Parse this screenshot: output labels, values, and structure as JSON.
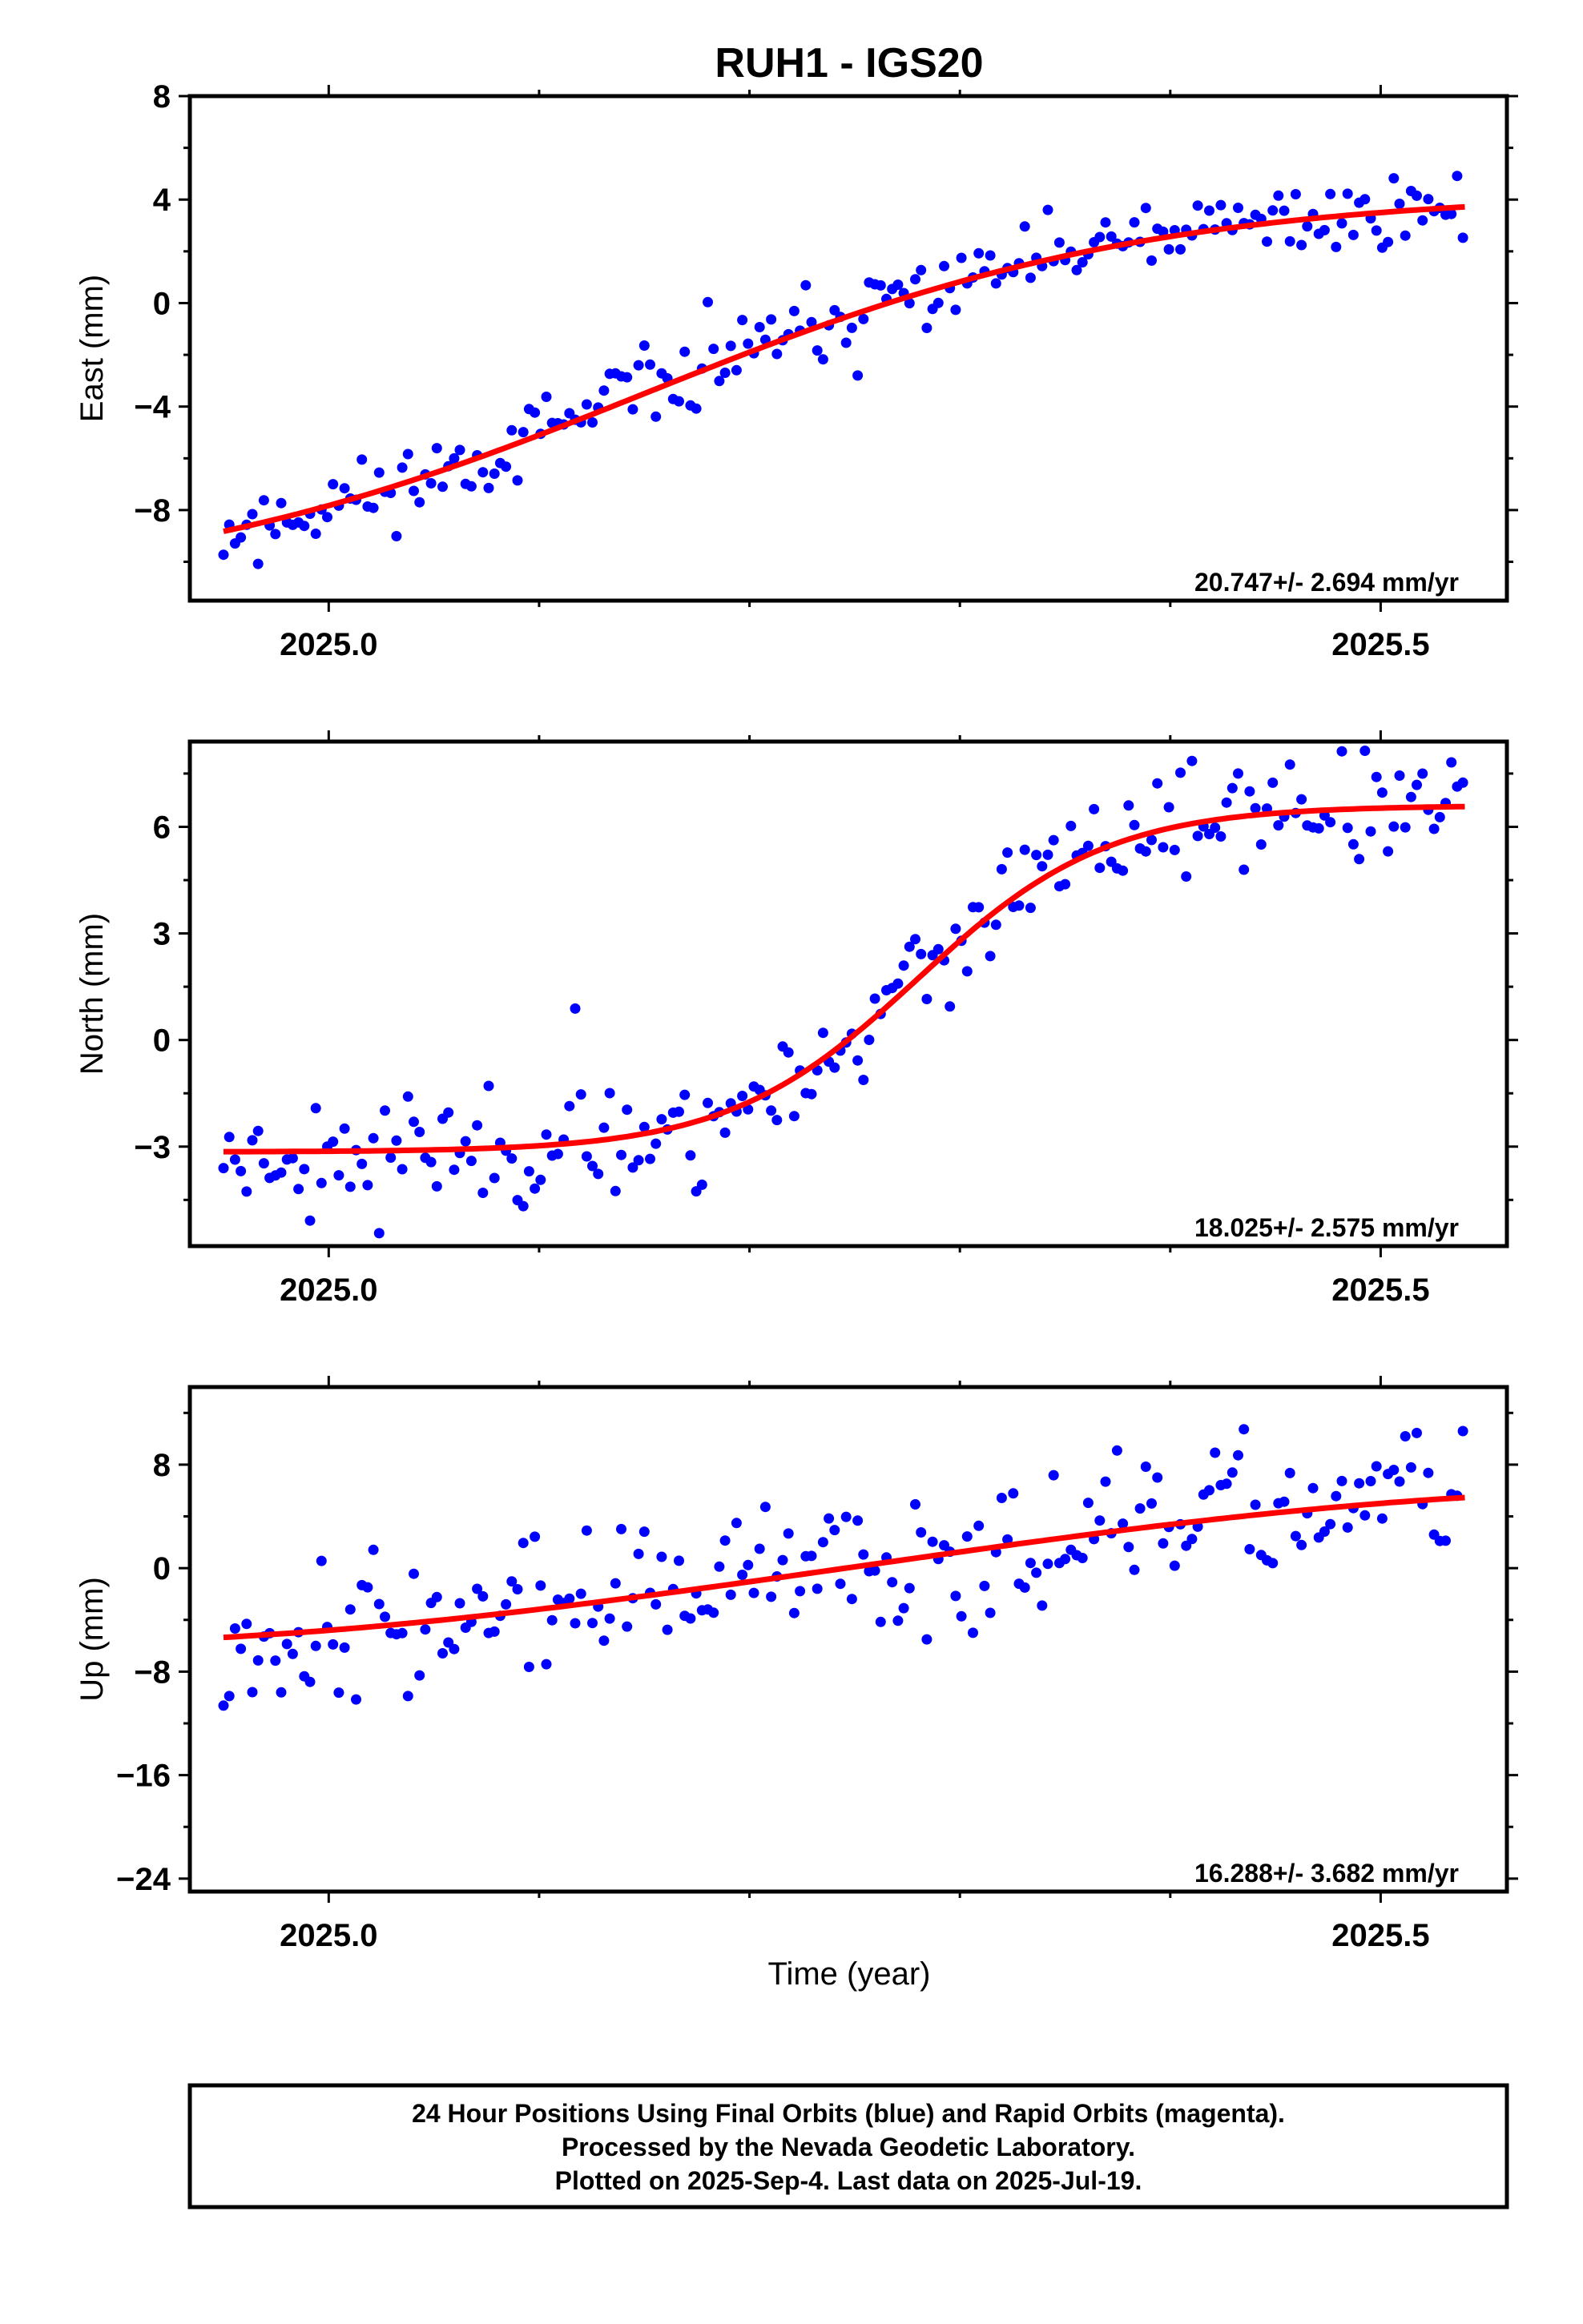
{
  "title": "RUH1 - IGS20",
  "xlabel": "Time (year)",
  "footer": [
    "24 Hour Positions Using Final Orbits (blue) and Rapid Orbits (magenta).",
    "Processed by the Nevada Geodetic Laboratory.",
    "Plotted on 2025-Sep-4. Last data on 2025-Jul-19."
  ],
  "colors": {
    "points": "#0000ff",
    "fit": "#ff0000",
    "axes": "#000000"
  },
  "chart_data": [
    {
      "type": "scatter",
      "name": "east",
      "ylabel": "East (mm)",
      "xlim": [
        2024.934,
        2025.56
      ],
      "ylim": [
        -11.5,
        8
      ],
      "yticks_labeled": [
        -8,
        -4,
        0,
        4,
        8
      ],
      "yticks_minor": [
        -10,
        -6,
        -2,
        2,
        6
      ],
      "xticks_labeled": [
        2025.0,
        2025.5
      ],
      "xticks_minor": [
        2025.1,
        2025.2,
        2025.3,
        2025.4
      ],
      "rate_label": "20.747+/- 2.694 mm/yr",
      "fit_model": {
        "type": "sigmoid",
        "low": -11.3,
        "high": 4.3,
        "center": 2025.15,
        "width": 0.12,
        "x0": 2024.95,
        "x1": 2025.54
      },
      "fit_key": [
        [
          2024.95,
          -10.3
        ],
        [
          2025.15,
          -3.6
        ],
        [
          2025.3,
          1.8
        ],
        [
          2025.4,
          4.0
        ],
        [
          2025.54,
          4.2
        ]
      ],
      "points": {
        "x0": 2024.95,
        "step": 0.00274,
        "n": 216,
        "amp": 1.1,
        "seed": 11
      }
    },
    {
      "type": "scatter",
      "name": "north",
      "ylabel": "North (mm)",
      "xlim": [
        2024.934,
        2025.56
      ],
      "ylim": [
        -5.8,
        8.4
      ],
      "yticks_labeled": [
        -3,
        0,
        3,
        6
      ],
      "yticks_minor": [
        -4.5,
        -1.5,
        1.5,
        4.5,
        7.5
      ],
      "xticks_labeled": [
        2025.0,
        2025.5
      ],
      "xticks_minor": [
        2025.1,
        2025.2,
        2025.3,
        2025.4
      ],
      "rate_label": "18.025+/- 2.575 mm/yr",
      "fit_model": {
        "type": "sigmoid",
        "low": -3.15,
        "high": 6.6,
        "center": 2025.28,
        "width": 0.045,
        "x0": 2024.95,
        "x1": 2025.54
      },
      "fit_key": [
        [
          2024.95,
          -3.1
        ],
        [
          2025.07,
          -3.15
        ],
        [
          2025.28,
          1.6
        ],
        [
          2025.4,
          5.8
        ],
        [
          2025.54,
          6.5
        ]
      ],
      "points": {
        "x0": 2024.95,
        "step": 0.00274,
        "n": 216,
        "amp": 1.1,
        "seed": 23
      }
    },
    {
      "type": "scatter",
      "name": "up",
      "ylabel": "Up (mm)",
      "xlim": [
        2024.934,
        2025.56
      ],
      "ylim": [
        -25,
        14
      ],
      "yticks_labeled": [
        -24,
        -16,
        -8,
        0,
        8
      ],
      "yticks_minor": [
        -20,
        -12,
        -4,
        4,
        12
      ],
      "xticks_labeled": [
        2025.0,
        2025.5
      ],
      "xticks_minor": [
        2025.1,
        2025.2,
        2025.3,
        2025.4
      ],
      "rate_label": "16.288+/- 3.682 mm/yr",
      "fit_model": {
        "type": "sine",
        "mean": 0.1,
        "amp": 5.9,
        "center": 2025.25,
        "halfperiod": 0.4,
        "x0": 2024.95,
        "x1": 2025.54
      },
      "fit_key": [
        [
          2024.95,
          -4.0
        ],
        [
          2025.1,
          -5.8
        ],
        [
          2025.25,
          0.0
        ],
        [
          2025.4,
          5.0
        ],
        [
          2025.54,
          5.8
        ]
      ],
      "points": {
        "x0": 2024.95,
        "step": 0.00274,
        "n": 216,
        "amp": 4.0,
        "seed": 37
      }
    }
  ]
}
